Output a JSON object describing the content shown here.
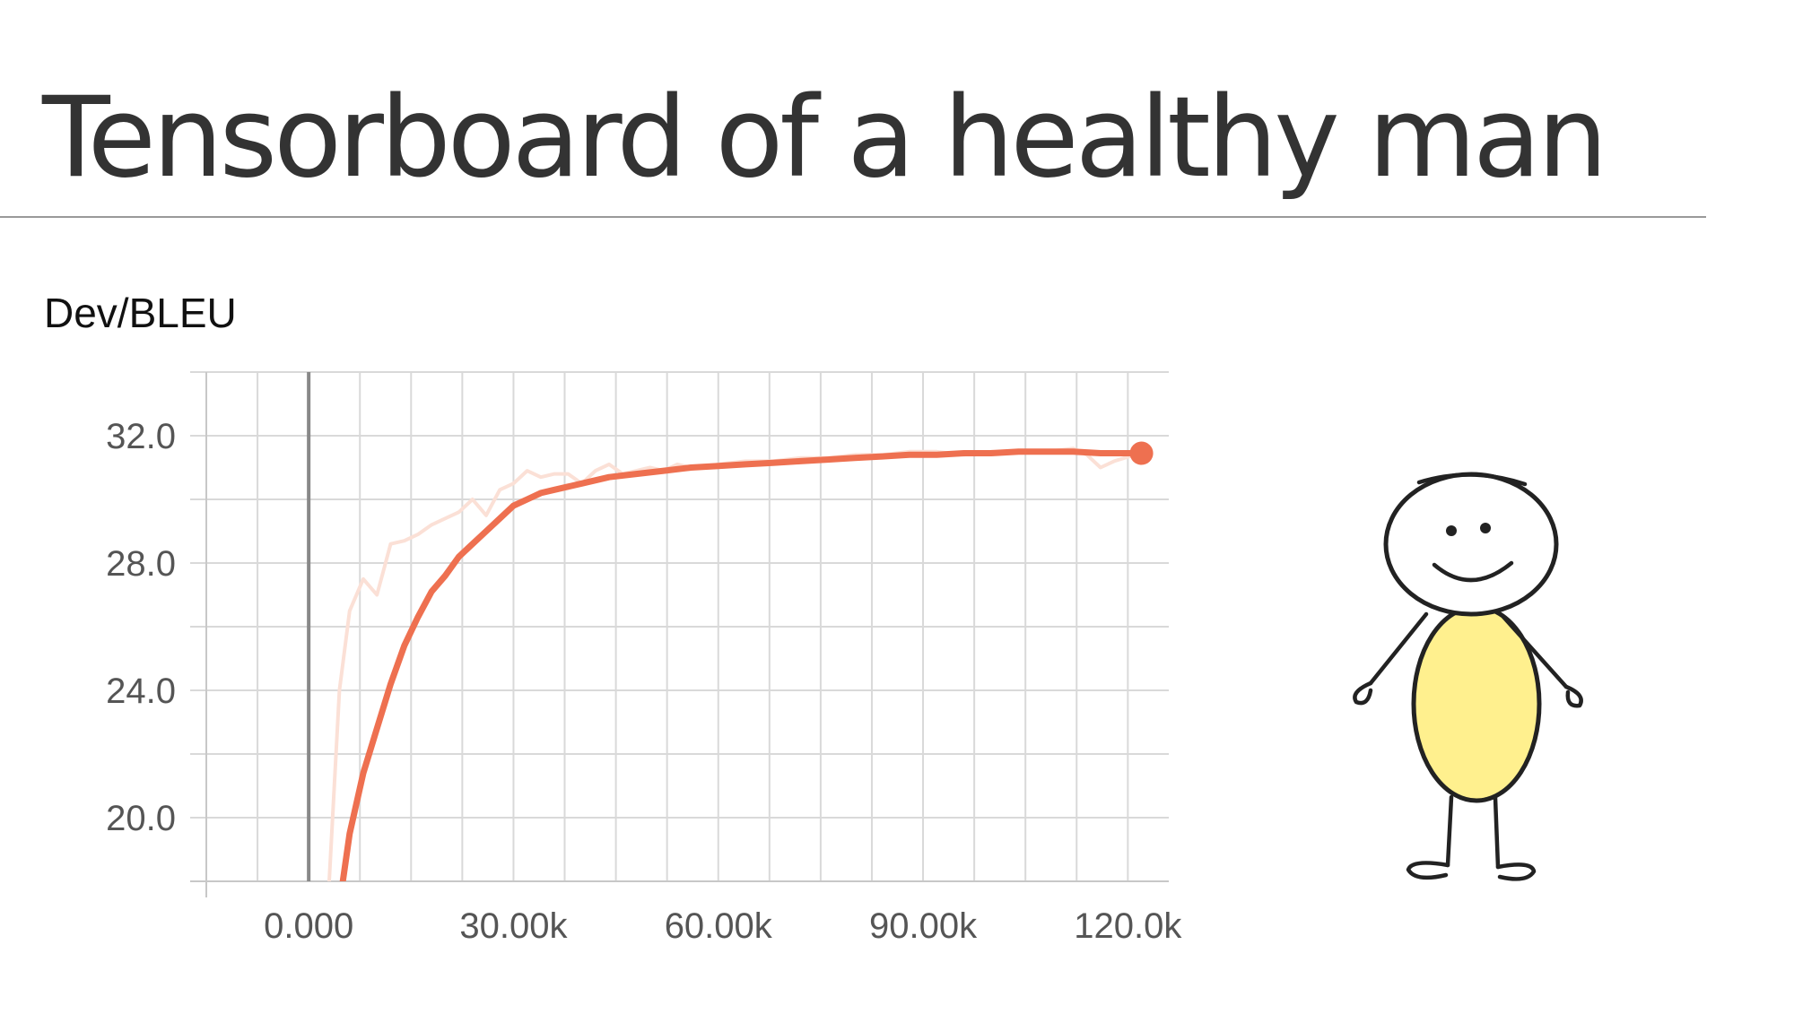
{
  "title": "Tensorboard of a healthy man",
  "chart_data": {
    "type": "line",
    "title": "Dev/BLEU",
    "xlabel": "",
    "ylabel": "",
    "xlim": [
      -15000,
      126000
    ],
    "ylim": [
      18,
      34
    ],
    "x_ticks": [
      0,
      30000,
      60000,
      90000,
      120000
    ],
    "x_tick_labels": [
      "0.000",
      "30.00k",
      "60.00k",
      "90.00k",
      "120.0k"
    ],
    "y_ticks": [
      20,
      24,
      28,
      32
    ],
    "y_tick_labels": [
      "20.0",
      "24.0",
      "28.0",
      "32.0"
    ],
    "grid": true,
    "legend": "none",
    "series": [
      {
        "role": "raw",
        "color": "#fbe0d6",
        "x": [
          3000,
          4500,
          6000,
          8000,
          10000,
          11000,
          12000,
          14000,
          16000,
          18000,
          20000,
          22000,
          24000,
          26000,
          28000,
          30000,
          32000,
          34000,
          36000,
          38000,
          40000,
          42000,
          44000,
          46000,
          48000,
          50000,
          52000,
          54000,
          56000,
          58000,
          60000,
          64000,
          68000,
          72000,
          76000,
          80000,
          84000,
          88000,
          92000,
          96000,
          100000,
          104000,
          108000,
          112000,
          114000,
          116000,
          118000,
          121000
        ],
        "y": [
          18,
          24,
          26.5,
          27.5,
          27,
          27.8,
          28.6,
          28.7,
          28.9,
          29.2,
          29.4,
          29.6,
          30.0,
          29.5,
          30.3,
          30.5,
          30.9,
          30.7,
          30.8,
          30.8,
          30.5,
          30.9,
          31.1,
          30.8,
          30.9,
          31.0,
          30.9,
          31.1,
          31.0,
          31.0,
          31.1,
          31.2,
          31.2,
          31.3,
          31.3,
          31.4,
          31.4,
          31.5,
          31.5,
          31.4,
          31.5,
          31.5,
          31.5,
          31.6,
          31.4,
          31.0,
          31.2,
          31.4
        ]
      },
      {
        "role": "smoothed",
        "color": "#ee7050",
        "x": [
          5000,
          6000,
          8000,
          10000,
          12000,
          14000,
          16000,
          18000,
          20000,
          22000,
          24000,
          26000,
          28000,
          30000,
          32000,
          34000,
          36000,
          38000,
          40000,
          44000,
          48000,
          52000,
          56000,
          60000,
          64000,
          68000,
          72000,
          76000,
          80000,
          84000,
          88000,
          92000,
          96000,
          100000,
          104000,
          108000,
          112000,
          116000,
          119000,
          122000
        ],
        "y": [
          18,
          19.5,
          21.4,
          22.8,
          24.2,
          25.4,
          26.3,
          27.1,
          27.6,
          28.2,
          28.6,
          29.0,
          29.4,
          29.8,
          30.0,
          30.2,
          30.3,
          30.4,
          30.5,
          30.7,
          30.8,
          30.9,
          31.0,
          31.05,
          31.1,
          31.15,
          31.2,
          31.25,
          31.3,
          31.35,
          31.4,
          31.4,
          31.45,
          31.45,
          31.5,
          31.5,
          31.5,
          31.45,
          31.45,
          31.45
        ]
      }
    ],
    "end_marker": {
      "x": 122000,
      "y": 31.45,
      "color": "#ee7050"
    }
  },
  "illustration": {
    "name": "smiling-stick-figure",
    "body_color": "#fff08e",
    "line_color": "#222222"
  }
}
